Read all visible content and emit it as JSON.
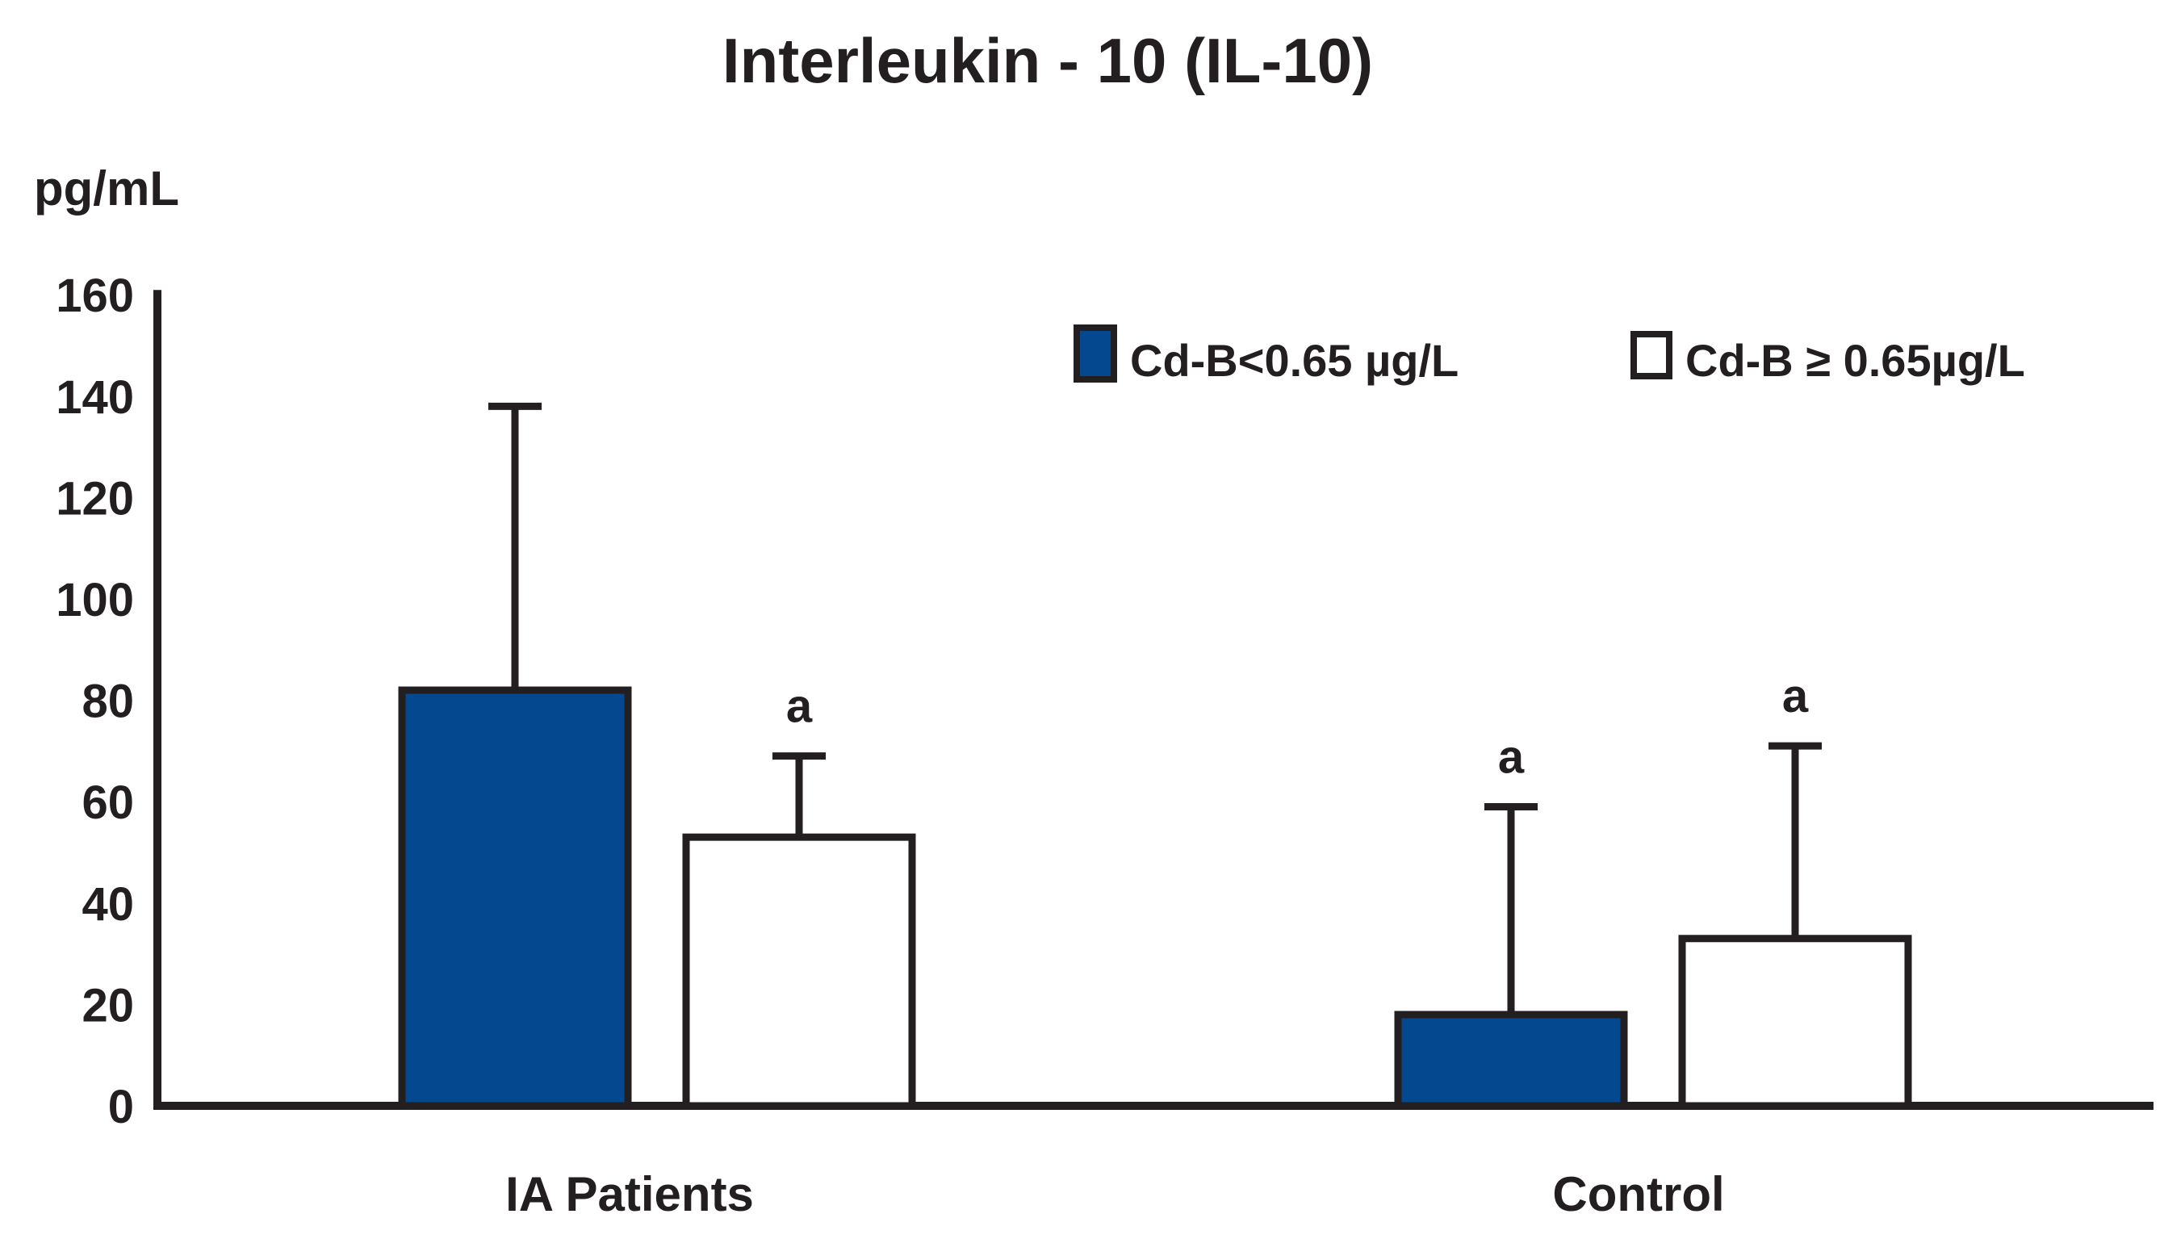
{
  "title": "Interleukin - 10 (IL-10)",
  "ylabel": "pg/mL",
  "ink_color": "#231f20",
  "background_color": "#ffffff",
  "chart_data": {
    "type": "bar",
    "title": "Interleukin - 10 (IL-10)",
    "ylabel": "pg/mL",
    "xlabel": "",
    "ylim": [
      0,
      160
    ],
    "yticks": [
      0,
      20,
      40,
      60,
      80,
      100,
      120,
      140,
      160
    ],
    "grid": false,
    "legend_position": "top-right",
    "categories": [
      "IA Patients",
      "Control"
    ],
    "series": [
      {
        "name": "Cd-B<0.65 µg/L",
        "fill": "#04498f",
        "values": [
          82,
          18
        ],
        "error_upper": [
          56,
          41
        ],
        "annotations": [
          "",
          "a"
        ]
      },
      {
        "name": "Cd-B ≥ 0.65µg/L",
        "fill": "#ffffff",
        "values": [
          53,
          33
        ],
        "error_upper": [
          16,
          38
        ],
        "annotations": [
          "a",
          "a"
        ]
      }
    ]
  }
}
